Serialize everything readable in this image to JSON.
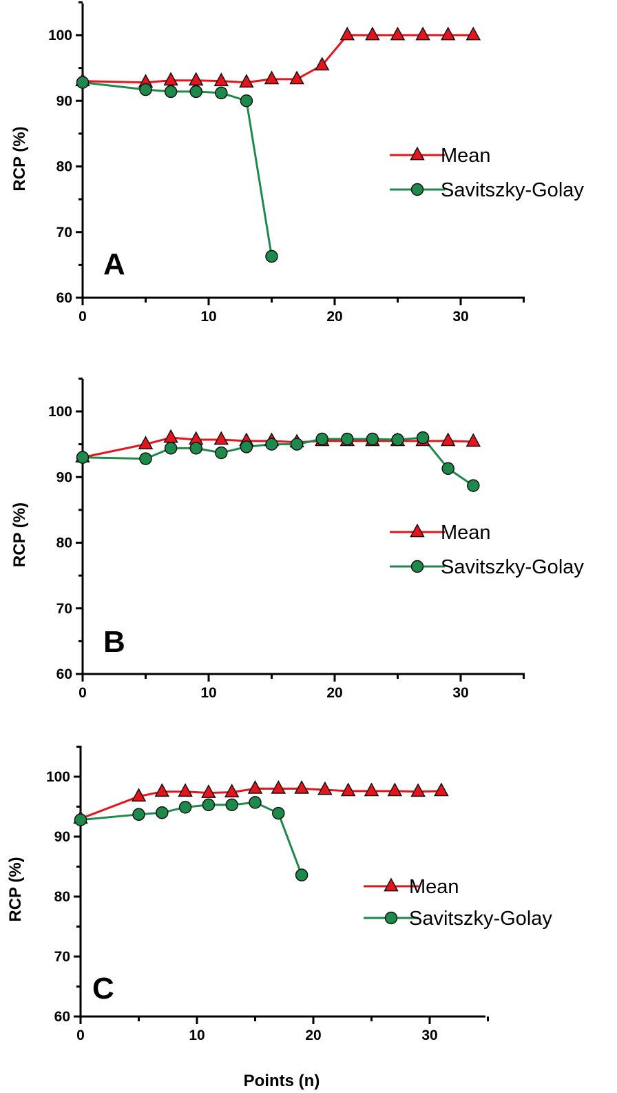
{
  "chart_data": [
    {
      "type": "line",
      "panel_label": "A",
      "xlabel": "",
      "ylabel": "RCP (%)",
      "xlim": [
        0,
        35
      ],
      "ylim": [
        60,
        105
      ],
      "xticks": [
        0,
        10,
        20,
        30
      ],
      "yticks": [
        60,
        70,
        80,
        90,
        100
      ],
      "legend_position": "right",
      "series": [
        {
          "name": "Mean",
          "marker": "triangle",
          "color": "#e8141c",
          "x": [
            0,
            5,
            7,
            9,
            11,
            13,
            15,
            17,
            19,
            21,
            23,
            25,
            27,
            29,
            31
          ],
          "y": [
            93,
            92.8,
            93.1,
            93.1,
            93.0,
            92.8,
            93.3,
            93.3,
            95.4,
            100,
            100,
            100,
            100,
            100,
            100
          ]
        },
        {
          "name": "Savitszky-Golay",
          "marker": "circle",
          "color": "#1d8a4c",
          "x": [
            0,
            5,
            7,
            9,
            11,
            13,
            15
          ],
          "y": [
            92.8,
            91.7,
            91.4,
            91.4,
            91.2,
            90.0,
            66.3
          ]
        }
      ]
    },
    {
      "type": "line",
      "panel_label": "B",
      "xlabel": "",
      "ylabel": "RCP (%)",
      "xlim": [
        0,
        35
      ],
      "ylim": [
        60,
        105
      ],
      "xticks": [
        0,
        10,
        20,
        30
      ],
      "yticks": [
        60,
        70,
        80,
        90,
        100
      ],
      "legend_position": "right",
      "series": [
        {
          "name": "Mean",
          "marker": "triangle",
          "color": "#e8141c",
          "x": [
            0,
            5,
            7,
            9,
            11,
            13,
            15,
            17,
            19,
            21,
            23,
            25,
            27,
            29,
            31
          ],
          "y": [
            93.0,
            95.0,
            96.0,
            95.7,
            95.7,
            95.5,
            95.5,
            95.3,
            95.5,
            95.5,
            95.5,
            95.5,
            95.5,
            95.5,
            95.4
          ]
        },
        {
          "name": "Savitszky-Golay",
          "marker": "circle",
          "color": "#1d8a4c",
          "x": [
            0,
            5,
            7,
            9,
            11,
            13,
            15,
            17,
            19,
            21,
            23,
            25,
            27,
            29,
            31
          ],
          "y": [
            93.0,
            92.8,
            94.4,
            94.4,
            93.7,
            94.6,
            95.0,
            95.0,
            95.8,
            95.8,
            95.8,
            95.7,
            96.0,
            91.3,
            88.7
          ]
        }
      ]
    },
    {
      "type": "line",
      "panel_label": "C",
      "xlabel": "Points (n)",
      "ylabel": "RCP (%)",
      "xlim": [
        0,
        35
      ],
      "ylim": [
        60,
        105
      ],
      "xticks": [
        0,
        10,
        20,
        30
      ],
      "yticks": [
        60,
        70,
        80,
        90,
        100
      ],
      "legend_position": "right",
      "series": [
        {
          "name": "Mean",
          "marker": "triangle",
          "color": "#e8141c",
          "x": [
            0,
            5,
            7,
            9,
            11,
            13,
            15,
            17,
            19,
            21,
            23,
            25,
            27,
            29,
            31
          ],
          "y": [
            93.0,
            96.7,
            97.5,
            97.5,
            97.3,
            97.4,
            98.0,
            98.0,
            98.0,
            97.8,
            97.6,
            97.6,
            97.6,
            97.5,
            97.6
          ]
        },
        {
          "name": "Savitszky-Golay",
          "marker": "circle",
          "color": "#1d8a4c",
          "x": [
            0,
            5,
            7,
            9,
            11,
            13,
            15,
            17,
            19
          ],
          "y": [
            92.8,
            93.7,
            94.0,
            94.9,
            95.3,
            95.3,
            95.7,
            93.9,
            83.6
          ]
        }
      ]
    }
  ]
}
